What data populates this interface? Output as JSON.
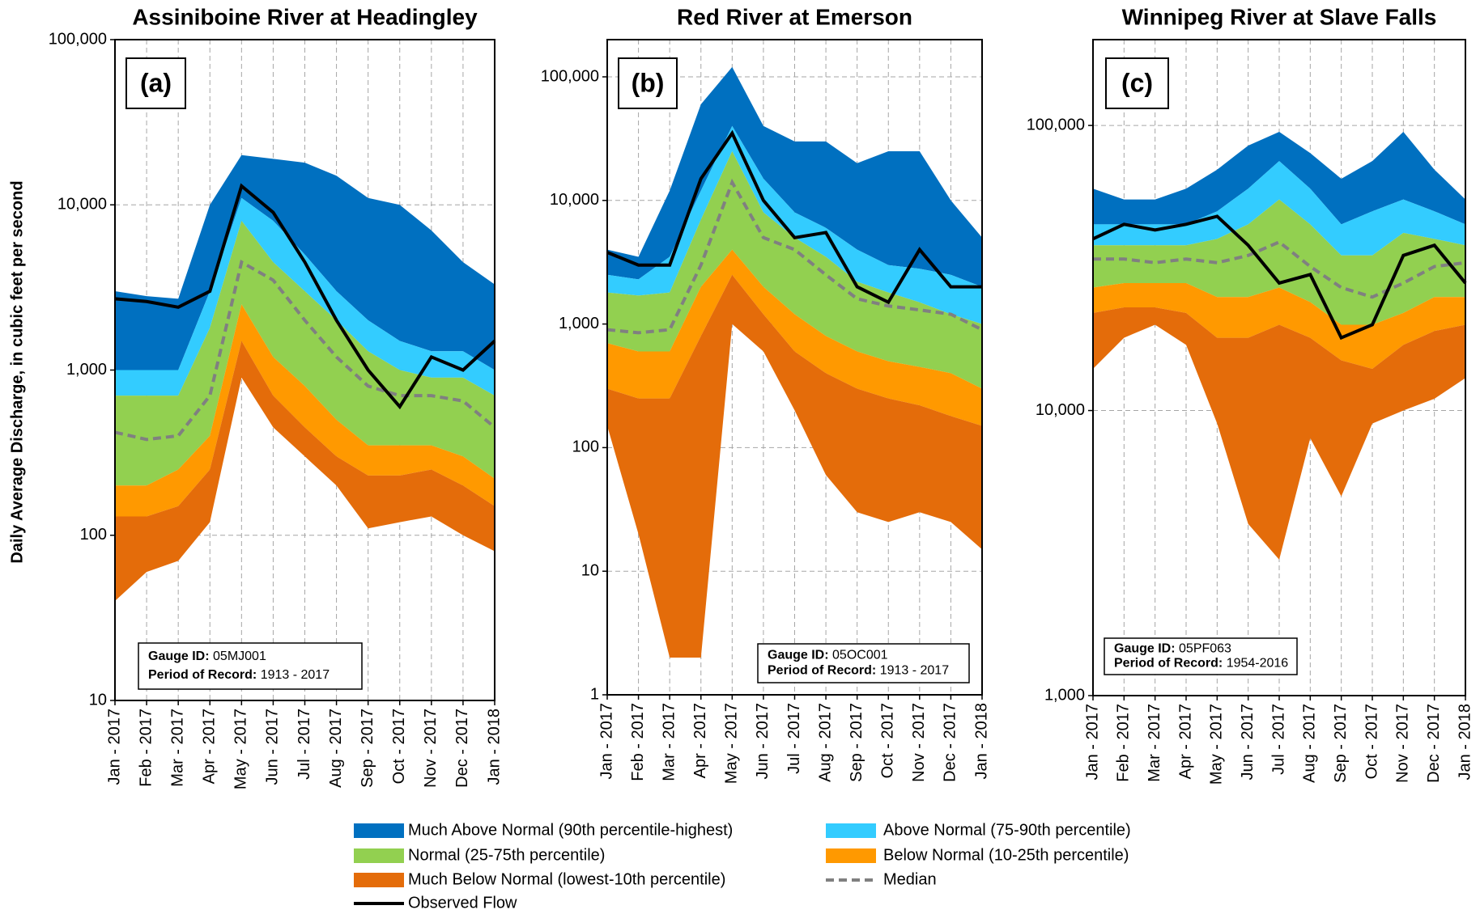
{
  "legend": [
    {
      "name": "Much Above Normal (90th percentile-highest)",
      "color": "#0070c0",
      "kind": "range"
    },
    {
      "name": "Above Normal (75-90th percentile)",
      "color": "#33ccff",
      "kind": "range"
    },
    {
      "name": "Normal (25-75th percentile)",
      "color": "#92d050",
      "kind": "range"
    },
    {
      "name": "Below Normal (10-25th percentile)",
      "color": "#ff9900",
      "kind": "range"
    },
    {
      "name": "Much Below Normal (lowest-10th percentile)",
      "color": "#e46c0a",
      "kind": "range"
    },
    {
      "name": "Median",
      "color": "#808080",
      "kind": "line",
      "dashed": true
    },
    {
      "name": "Observed Flow",
      "color": "#000000",
      "kind": "line",
      "dashed": false
    }
  ],
  "ylabel": "Daily Average Discharge, in cubic feet per second",
  "chart_data": [
    {
      "type": "band",
      "title": "Assiniboine  River at Headingley",
      "panel": "(a)",
      "gauge_id_label": "Gauge ID:",
      "gauge_id": "05MJ001",
      "record_label": "Period of Record:",
      "record": "1913 - 2017",
      "log_y": true,
      "grid": true,
      "categories": [
        "Jan - 2017",
        "Feb - 2017",
        "Mar - 2017",
        "Apr - 2017",
        "May - 2017",
        "Jun - 2017",
        "Jul - 2017",
        "Aug - 2017",
        "Sep - 2017",
        "Oct - 2017",
        "Nov - 2017",
        "Dec - 2017",
        "Jan - 2018"
      ],
      "ylim": [
        10,
        100000
      ],
      "yticks": [
        10,
        100,
        {
          "value": 1000,
          "label": "1,000"
        },
        {
          "value": 10000,
          "label": "10,000"
        },
        {
          "value": 100000,
          "label": "100,000"
        }
      ],
      "series": [
        {
          "low": [
            1000,
            1000,
            1000,
            3000,
            11000,
            8000,
            5000,
            3000,
            2000,
            1500,
            1300,
            1300,
            1000
          ],
          "high": [
            3000,
            2800,
            2700,
            10000,
            20000,
            19000,
            18000,
            15000,
            11000,
            10000,
            7000,
            4500,
            3300
          ]
        },
        {
          "low": [
            700,
            700,
            700,
            1800,
            8000,
            4500,
            3000,
            2000,
            1300,
            1000,
            900,
            900,
            700
          ],
          "high": [
            1000,
            1000,
            1000,
            3000,
            11000,
            8000,
            5000,
            3000,
            2000,
            1500,
            1300,
            1300,
            1000
          ]
        },
        {
          "low": [
            200,
            200,
            250,
            400,
            2500,
            1200,
            800,
            500,
            350,
            350,
            350,
            300,
            220
          ],
          "high": [
            700,
            700,
            700,
            1800,
            8000,
            4500,
            3000,
            2000,
            1300,
            1000,
            900,
            900,
            700
          ]
        },
        {
          "low": [
            130,
            130,
            150,
            250,
            1500,
            700,
            450,
            300,
            230,
            230,
            250,
            200,
            150
          ],
          "high": [
            200,
            200,
            250,
            400,
            2500,
            1200,
            800,
            500,
            350,
            350,
            350,
            300,
            220
          ]
        },
        {
          "low": [
            40,
            60,
            70,
            120,
            900,
            450,
            300,
            200,
            110,
            120,
            130,
            100,
            80
          ],
          "high": [
            130,
            130,
            150,
            250,
            1500,
            700,
            450,
            300,
            230,
            230,
            250,
            200,
            150
          ]
        },
        {
          "values": [
            420,
            380,
            400,
            700,
            4500,
            3500,
            2000,
            1200,
            800,
            700,
            700,
            650,
            450
          ]
        },
        {
          "values": [
            2700,
            2600,
            2400,
            3000,
            13000,
            9000,
            4500,
            2000,
            1000,
            600,
            1200,
            1000,
            1500
          ]
        }
      ]
    },
    {
      "type": "band",
      "title": "Red River at Emerson",
      "panel": "(b)",
      "gauge_id_label": "Gauge ID:",
      "gauge_id": "05OC001",
      "record_label": "Period of Record:",
      "record": "1913 - 2017",
      "log_y": true,
      "grid": true,
      "categories": [
        "Jan - 2017",
        "Feb - 2017",
        "Mar - 2017",
        "Apr - 2017",
        "May - 2017",
        "Jun - 2017",
        "Jul - 2017",
        "Aug - 2017",
        "Sep - 2017",
        "Oct - 2017",
        "Nov - 2017",
        "Dec - 2017",
        "Jan - 2018"
      ],
      "ylim": [
        1,
        200000
      ],
      "yticks": [
        1,
        10,
        100,
        {
          "value": 1000,
          "label": "1,000"
        },
        {
          "value": 10000,
          "label": "10,000"
        },
        {
          "value": 100000,
          "label": "100,000"
        }
      ],
      "series": [
        {
          "low": [
            2500,
            2300,
            3500,
            12000,
            40000,
            15000,
            8000,
            6000,
            4000,
            3000,
            2800,
            2500,
            2000
          ],
          "high": [
            4000,
            3500,
            12000,
            60000,
            120000,
            40000,
            30000,
            30000,
            20000,
            25000,
            25000,
            10000,
            5000
          ]
        },
        {
          "low": [
            1800,
            1700,
            1800,
            7000,
            25000,
            8000,
            5000,
            3500,
            2200,
            1800,
            1500,
            1200,
            1000
          ],
          "high": [
            2500,
            2300,
            3500,
            12000,
            40000,
            15000,
            8000,
            6000,
            4000,
            3000,
            2800,
            2500,
            2000
          ]
        },
        {
          "low": [
            700,
            600,
            600,
            2000,
            4000,
            2000,
            1200,
            800,
            600,
            500,
            450,
            400,
            300
          ],
          "high": [
            1800,
            1700,
            1800,
            7000,
            25000,
            8000,
            5000,
            3500,
            2200,
            1800,
            1500,
            1200,
            1000
          ]
        },
        {
          "low": [
            300,
            250,
            250,
            800,
            2500,
            1200,
            600,
            400,
            300,
            250,
            220,
            180,
            150
          ],
          "high": [
            700,
            600,
            600,
            2000,
            4000,
            2000,
            1200,
            800,
            600,
            500,
            450,
            400,
            300
          ]
        },
        {
          "low": [
            150,
            20,
            2,
            2,
            1000,
            600,
            200,
            60,
            30,
            25,
            30,
            25,
            15
          ],
          "high": [
            300,
            250,
            250,
            800,
            2500,
            1200,
            600,
            400,
            300,
            250,
            220,
            180,
            150
          ]
        },
        {
          "values": [
            900,
            850,
            900,
            3000,
            14000,
            5000,
            4000,
            2500,
            1600,
            1400,
            1300,
            1200,
            900
          ]
        },
        {
          "values": [
            3800,
            3000,
            3000,
            15000,
            35000,
            10000,
            5000,
            5500,
            2000,
            1500,
            4000,
            2000,
            2000
          ]
        }
      ]
    },
    {
      "type": "band",
      "title": "Winnipeg River at Slave Falls",
      "panel": "(c)",
      "gauge_id_label": "Gauge ID:",
      "gauge_id": "05PF063",
      "record_label": "Period of Record:",
      "record": "1954-2016",
      "log_y": true,
      "grid": true,
      "categories": [
        "Jan - 2017",
        "Feb - 2017",
        "Mar - 2017",
        "Apr - 2017",
        "May - 2017",
        "Jun - 2017",
        "Jul - 2017",
        "Aug - 2017",
        "Sep - 2017",
        "Oct - 2017",
        "Nov - 2017",
        "Dec - 2017",
        "Jan - 2018"
      ],
      "ylim": [
        1000,
        200000
      ],
      "yticks": [
        {
          "value": 1000,
          "label": "1,000"
        },
        {
          "value": 10000,
          "label": "10,000"
        },
        {
          "value": 100000,
          "label": "100,000"
        }
      ],
      "series": [
        {
          "low": [
            45000,
            45000,
            45000,
            45000,
            50000,
            60000,
            75000,
            60000,
            45000,
            50000,
            55000,
            50000,
            45000
          ],
          "high": [
            60000,
            55000,
            55000,
            60000,
            70000,
            85000,
            95000,
            80000,
            65000,
            75000,
            95000,
            70000,
            55000
          ]
        },
        {
          "low": [
            38000,
            38000,
            38000,
            38000,
            40000,
            45000,
            55000,
            45000,
            35000,
            35000,
            42000,
            40000,
            38000
          ],
          "high": [
            45000,
            45000,
            45000,
            45000,
            50000,
            60000,
            75000,
            60000,
            45000,
            50000,
            55000,
            50000,
            45000
          ]
        },
        {
          "low": [
            27000,
            28000,
            28000,
            28000,
            25000,
            25000,
            27000,
            24000,
            20000,
            20000,
            22000,
            25000,
            25000
          ],
          "high": [
            38000,
            38000,
            38000,
            38000,
            40000,
            45000,
            55000,
            45000,
            35000,
            35000,
            42000,
            40000,
            38000
          ]
        },
        {
          "low": [
            22000,
            23000,
            23000,
            22000,
            18000,
            18000,
            20000,
            18000,
            15000,
            14000,
            17000,
            19000,
            20000
          ],
          "high": [
            27000,
            28000,
            28000,
            28000,
            25000,
            25000,
            27000,
            24000,
            20000,
            20000,
            22000,
            25000,
            25000
          ]
        },
        {
          "low": [
            14000,
            18000,
            20000,
            17000,
            9000,
            4000,
            3000,
            8000,
            5000,
            9000,
            10000,
            11000,
            13000
          ],
          "high": [
            22000,
            23000,
            23000,
            22000,
            18000,
            18000,
            20000,
            18000,
            15000,
            14000,
            17000,
            19000,
            20000
          ]
        },
        {
          "values": [
            34000,
            34000,
            33000,
            34000,
            33000,
            35000,
            39000,
            32000,
            27000,
            25000,
            28000,
            32000,
            33000
          ]
        },
        {
          "values": [
            40000,
            45000,
            43000,
            45000,
            48000,
            38000,
            28000,
            30000,
            18000,
            20000,
            35000,
            38000,
            28000
          ]
        }
      ]
    }
  ]
}
